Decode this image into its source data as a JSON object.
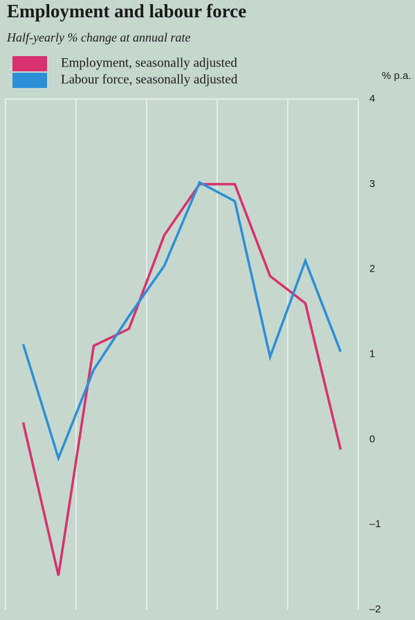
{
  "chart_data": {
    "type": "line",
    "title": "Employment and labour force",
    "subtitle": "Half-yearly % change at annual rate",
    "y_label": "% p.a.",
    "categories": [
      null,
      null,
      null,
      null,
      null,
      null,
      null,
      null,
      null,
      null
    ],
    "series": [
      {
        "name": "Employment, seasonally adjusted",
        "color": "#d8316e",
        "values": [
          0.2,
          -1.6,
          1.1,
          1.3,
          2.4,
          3.0,
          3.0,
          1.92,
          1.6,
          -0.12
        ]
      },
      {
        "name": "Labour force, seasonally adjusted",
        "color": "#2d8fd6",
        "values": [
          1.12,
          -0.22,
          0.82,
          1.45,
          2.04,
          3.02,
          2.8,
          0.97,
          2.1,
          1.03
        ]
      }
    ],
    "ylim": [
      -2,
      4
    ],
    "yticks": [
      {
        "value": -2,
        "label": "–2"
      },
      {
        "value": -1,
        "label": "–1"
      },
      0,
      1,
      2,
      3,
      4
    ]
  }
}
